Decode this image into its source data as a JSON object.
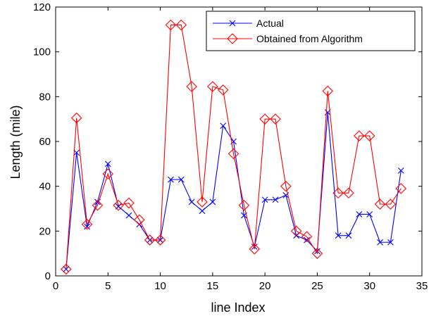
{
  "chart_data": {
    "type": "line",
    "xlabel": "line Index",
    "ylabel": "Length (mile)",
    "xlim": [
      0,
      35
    ],
    "ylim": [
      0,
      120
    ],
    "xticks": [
      0,
      5,
      10,
      15,
      20,
      25,
      30,
      35
    ],
    "yticks": [
      0,
      20,
      40,
      60,
      80,
      100,
      120
    ],
    "grid": false,
    "legend_position": "top-right",
    "x": [
      1,
      2,
      3,
      4,
      5,
      6,
      7,
      8,
      9,
      10,
      11,
      12,
      13,
      14,
      15,
      16,
      17,
      18,
      19,
      20,
      21,
      22,
      23,
      24,
      25,
      26,
      27,
      28,
      29,
      30,
      31,
      32,
      33
    ],
    "series": [
      {
        "name": "Actual",
        "color": "#0000ff",
        "marker": "x",
        "values": [
          3,
          55,
          22,
          33,
          50,
          31,
          27,
          23,
          16,
          16,
          43,
          43,
          33,
          29,
          33,
          67,
          60,
          27,
          13,
          34,
          34,
          36,
          18,
          16,
          11,
          73,
          18,
          18,
          27.5,
          27.5,
          15,
          15,
          47
        ]
      },
      {
        "name": "Obtained from Algorithm",
        "color": "#ff0000",
        "marker": "diamond",
        "values": [
          3,
          70.5,
          23,
          31.5,
          45.5,
          31.5,
          32.5,
          25,
          16,
          16,
          112,
          112,
          84.5,
          33,
          84.5,
          83,
          54.5,
          31.5,
          12,
          70,
          70,
          40,
          20,
          17.5,
          10,
          82.5,
          37,
          37,
          62.5,
          62.5,
          32,
          32,
          39
        ]
      }
    ]
  }
}
